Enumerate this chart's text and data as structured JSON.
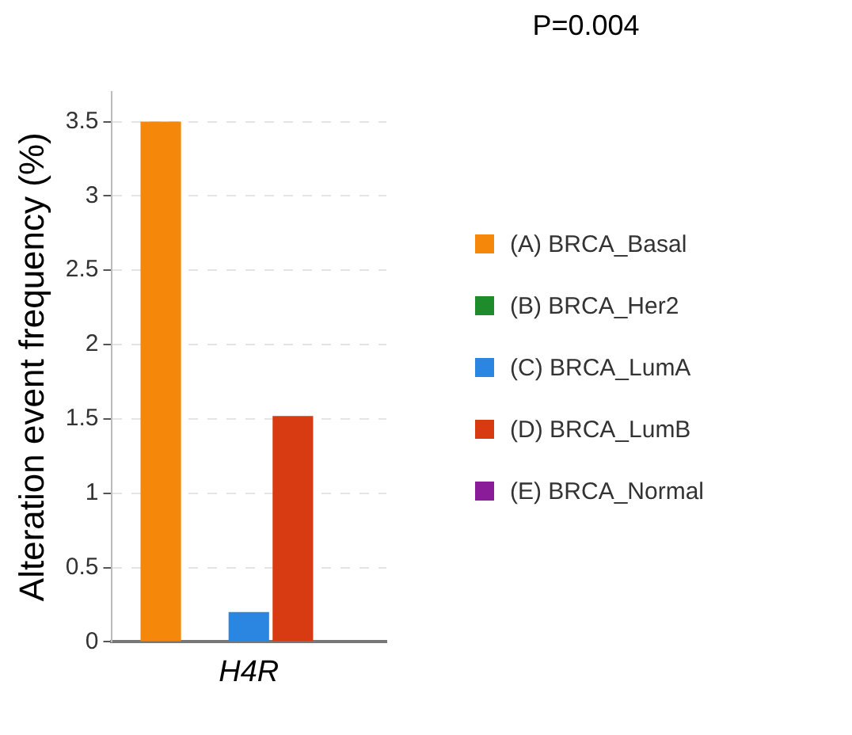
{
  "chart_data": {
    "type": "bar",
    "ylabel": "Alteration event frequency (%)",
    "categories": [
      "H4R"
    ],
    "series": [
      {
        "name": "(A) BRCA_Basal",
        "color": "#f5870a",
        "values": [
          3.5
        ]
      },
      {
        "name": "(B) BRCA_Her2",
        "color": "#1e8c2a",
        "values": [
          0
        ]
      },
      {
        "name": "(C) BRCA_LumA",
        "color": "#2a86e0",
        "values": [
          0.2
        ]
      },
      {
        "name": "(D) BRCA_LumB",
        "color": "#d83a12",
        "values": [
          1.52
        ]
      },
      {
        "name": "(E) BRCA_Normal",
        "color": "#8a1c9a",
        "values": [
          0
        ]
      }
    ],
    "ylim": [
      0,
      3.7
    ],
    "yticks": [
      0,
      0.5,
      1,
      1.5,
      2,
      2.5,
      3,
      3.5
    ],
    "grid": "y",
    "legend": "right",
    "annotations": [
      "P=0.004"
    ]
  }
}
